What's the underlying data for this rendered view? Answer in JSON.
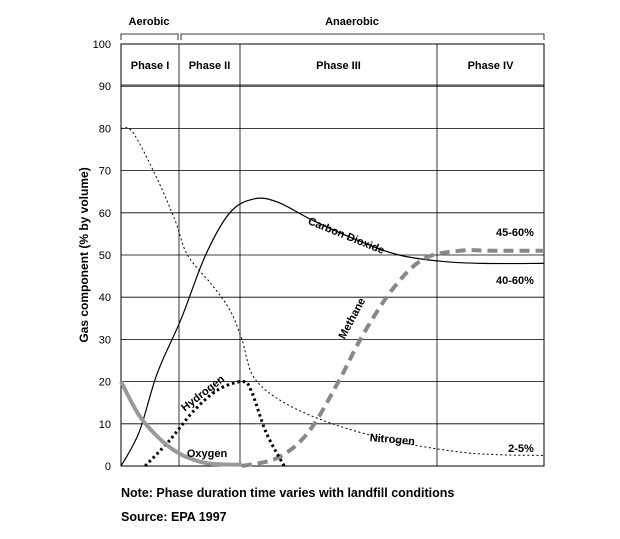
{
  "chart_data": {
    "type": "line",
    "ylabel": "Gas component (% by volume)",
    "xlabel": "",
    "title": "",
    "ylim": [
      0,
      100
    ],
    "yticks": [
      0,
      10,
      20,
      30,
      40,
      50,
      60,
      70,
      80,
      90,
      100
    ],
    "grid": "horizontal",
    "regime_groups": [
      {
        "label": "Aerobic",
        "phases": [
          "Phase I"
        ]
      },
      {
        "label": "Anaerobic",
        "phases": [
          "Phase II",
          "Phase III",
          "Phase IV"
        ]
      }
    ],
    "phases": [
      "Phase I",
      "Phase II",
      "Phase III",
      "Phase IV"
    ],
    "series": [
      {
        "name": "Carbon Dioxide",
        "style": "solid",
        "color": "#000000",
        "points": [
          [
            0,
            0
          ],
          [
            0.3,
            8
          ],
          [
            0.6,
            22
          ],
          [
            1,
            35
          ],
          [
            1.4,
            50
          ],
          [
            1.8,
            60
          ],
          [
            2.2,
            63.3
          ],
          [
            2.6,
            62.5
          ],
          [
            3.2,
            58
          ],
          [
            4,
            53
          ],
          [
            4.6,
            50
          ],
          [
            5.3,
            48.5
          ],
          [
            6,
            48
          ],
          [
            7,
            48
          ]
        ]
      },
      {
        "name": "Methane",
        "style": "dashed",
        "color": "#888888",
        "points": [
          [
            2,
            0
          ],
          [
            2.6,
            2
          ],
          [
            3.1,
            8
          ],
          [
            3.6,
            20
          ],
          [
            4,
            31
          ],
          [
            4.5,
            42
          ],
          [
            5,
            49
          ],
          [
            5.6,
            51
          ],
          [
            6.2,
            51
          ],
          [
            7,
            51
          ]
        ]
      },
      {
        "name": "Nitrogen",
        "style": "dotted",
        "color": "#000000",
        "points": [
          [
            0,
            80
          ],
          [
            0.2,
            79
          ],
          [
            0.6,
            68
          ],
          [
            0.9,
            58
          ],
          [
            1.1,
            50
          ],
          [
            1.5,
            43
          ],
          [
            1.8,
            37
          ],
          [
            2,
            30
          ],
          [
            2.2,
            21
          ],
          [
            2.7,
            15
          ],
          [
            3.5,
            10
          ],
          [
            4.5,
            6
          ],
          [
            5.5,
            3.5
          ],
          [
            6.2,
            2.7
          ],
          [
            7,
            2.5
          ]
        ]
      },
      {
        "name": "Hydrogen",
        "style": "heavy-dotted",
        "color": "#000000",
        "points": [
          [
            0.4,
            0
          ],
          [
            0.8,
            6
          ],
          [
            1.2,
            13
          ],
          [
            1.6,
            18
          ],
          [
            2,
            20
          ],
          [
            2.15,
            18
          ],
          [
            2.4,
            8
          ],
          [
            2.7,
            0
          ]
        ]
      },
      {
        "name": "Oxygen",
        "style": "solid-thick",
        "color": "#999999",
        "points": [
          [
            0,
            20
          ],
          [
            0.3,
            12
          ],
          [
            0.6,
            7
          ],
          [
            0.9,
            3.5
          ],
          [
            1.2,
            1.5
          ],
          [
            1.5,
            0.5
          ],
          [
            2,
            0.3
          ]
        ]
      }
    ],
    "annotations": [
      {
        "text": "45-60%",
        "series": "Methane"
      },
      {
        "text": "40-60%",
        "series": "Carbon Dioxide"
      },
      {
        "text": "2-5%",
        "series": "Nitrogen"
      }
    ]
  },
  "notes": {
    "note": "Note:  Phase duration time varies with landfill conditions",
    "source": "Source: EPA 1997"
  }
}
